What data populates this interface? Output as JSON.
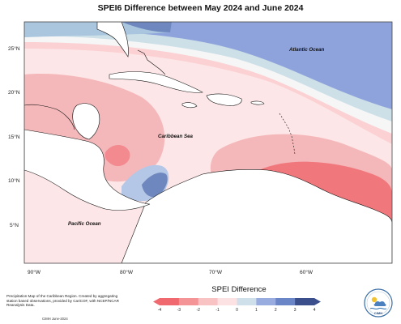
{
  "title": "SPEI6 Difference between May 2024 and June 2024",
  "labels": {
    "atlantic": "Atlantic Ocean",
    "caribbean": "Caribbean Sea",
    "pacific": "Pacific Ocean"
  },
  "lat_ticks": [
    "25°N",
    "20°N",
    "15°N",
    "10°N",
    "5°N"
  ],
  "lon_ticks": [
    "90°W",
    "80°W",
    "70°W",
    "60°W"
  ],
  "legend": {
    "title": "SPEI Difference",
    "ticks": [
      "-4",
      "-3",
      "-2",
      "-1",
      "0",
      "1",
      "2",
      "3",
      "4"
    ],
    "colors": [
      "#f0696e",
      "#f59496",
      "#f9c2c3",
      "#fde2e3",
      "#f7f7f7",
      "#cfe0ea",
      "#98acdf",
      "#6a86c7",
      "#3a4f8c"
    ]
  },
  "note": "Precipitation Map of the Caribbean Region. Created by aggregating station based observations, provided by CariCOF, with NCEP/NCAR Reanalysis Data.",
  "credit": "CIMH June-2024",
  "logo_text": "CIMH"
}
